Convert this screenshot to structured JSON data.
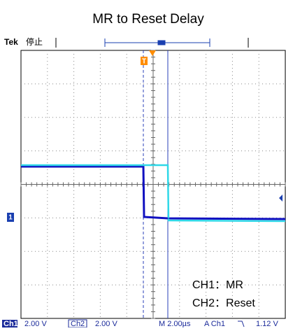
{
  "title": "MR to Reset Delay",
  "top_bar": {
    "brand": "Tek",
    "status": "停止"
  },
  "markers": {
    "trigger": "T",
    "channel": "1"
  },
  "legend": [
    "CH1：MR",
    "CH2：Reset"
  ],
  "status_bar": {
    "ch1": "Ch1",
    "ch1_scale": "2.00 V",
    "ch2": "Ch2",
    "ch2_scale": "2.00 V",
    "timebase": "M 2.00µs",
    "trigger_source": "A  Ch1",
    "trigger_level": "1.12 V"
  }
}
